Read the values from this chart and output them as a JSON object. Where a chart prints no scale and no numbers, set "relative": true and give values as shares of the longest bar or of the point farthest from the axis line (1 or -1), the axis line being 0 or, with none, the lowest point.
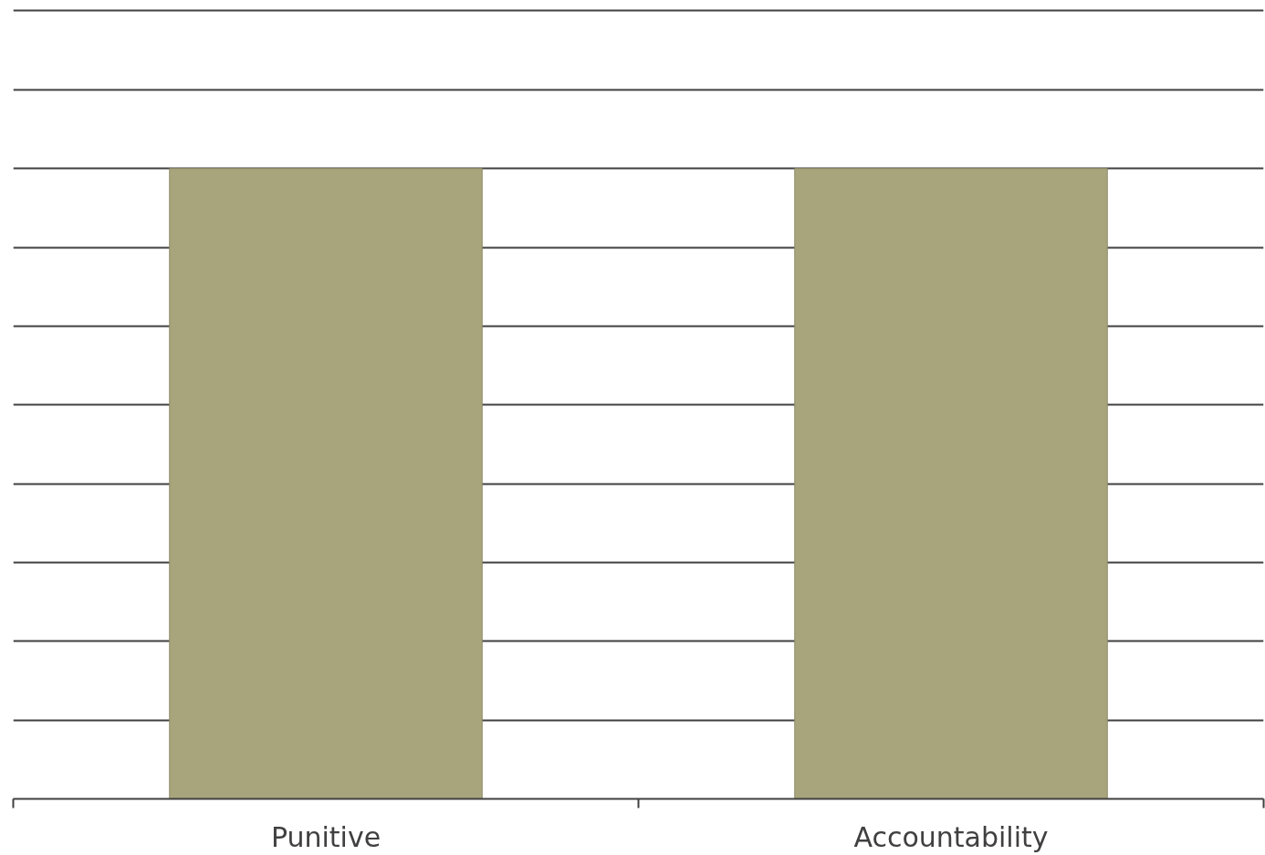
{
  "chart_data": {
    "type": "bar",
    "relative": true,
    "categories": [
      "Punitive",
      "Accountability"
    ],
    "values": [
      1,
      1
    ],
    "color": "#a8a47c",
    "grid": "y"
  }
}
